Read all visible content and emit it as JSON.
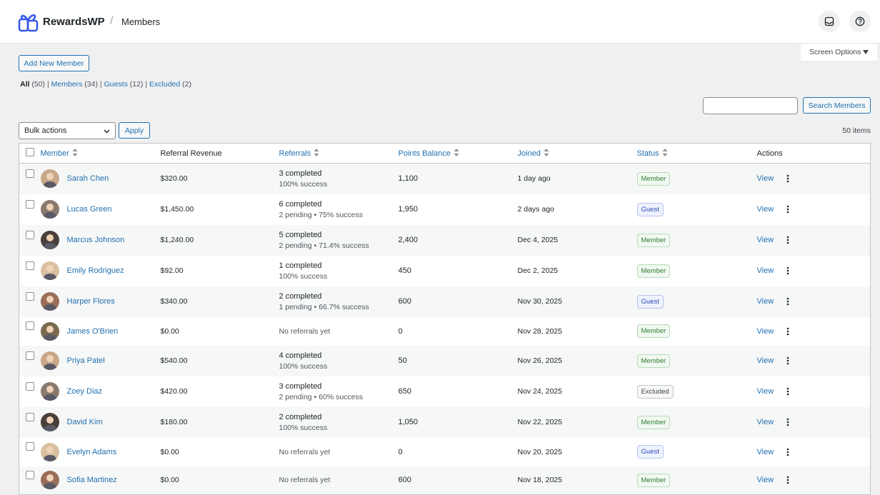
{
  "header": {
    "brand": "RewardsWP",
    "separator": "/",
    "page": "Members"
  },
  "screen_options": "Screen Options",
  "add_button": "Add New Member",
  "filters": [
    {
      "label": "All",
      "count": "(50)"
    },
    {
      "label": "Members",
      "count": "(34)"
    },
    {
      "label": "Guests",
      "count": "(12)"
    },
    {
      "label": "Excluded",
      "count": "(2)"
    }
  ],
  "filter_separator": "|",
  "search_button": "Search Members",
  "bulk_actions": "Bulk actions",
  "apply_button": "Apply",
  "items_count": "50 items",
  "table": {
    "columns": [
      "Member",
      "Referral Revenue",
      "Referrals",
      "Points Balance",
      "Joined",
      "Status",
      "Actions"
    ],
    "rows": [
      {
        "name": "Sarah Chen",
        "revenue": "$320.00",
        "referrals": "3 completed",
        "referrals_detail": "100% success",
        "points": "1,100",
        "joined": "1 day ago",
        "status": "Member",
        "action": "View"
      },
      {
        "name": "Lucas Green",
        "revenue": "$1,450.00",
        "referrals": "6 completed",
        "referrals_detail": "2 pending • 75% success",
        "points": "1,950",
        "joined": "2 days ago",
        "status": "Guest",
        "action": "View"
      },
      {
        "name": "Marcus Johnson",
        "revenue": "$1,240.00",
        "referrals": "5 completed",
        "referrals_detail": "2 pending • 71.4% success",
        "points": "2,400",
        "joined": "Dec 4, 2025",
        "status": "Member",
        "action": "View"
      },
      {
        "name": "Emily Rodriguez",
        "revenue": "$92.00",
        "referrals": "1 completed",
        "referrals_detail": "100% success",
        "points": "450",
        "joined": "Dec 2, 2025",
        "status": "Member",
        "action": "View"
      },
      {
        "name": "Harper Flores",
        "revenue": "$340.00",
        "referrals": "2 completed",
        "referrals_detail": "1 pending • 66.7% success",
        "points": "600",
        "joined": "Nov 30, 2025",
        "status": "Guest",
        "action": "View"
      },
      {
        "name": "James O'Brien",
        "revenue": "$0.00",
        "referrals": "No referrals yet",
        "points": "0",
        "joined": "Nov 28, 2025",
        "status": "Member",
        "action": "View"
      },
      {
        "name": "Priya Patel",
        "revenue": "$540.00",
        "referrals": "4 completed",
        "referrals_detail": "100% success",
        "points": "50",
        "joined": "Nov 26, 2025",
        "status": "Member",
        "action": "View"
      },
      {
        "name": "Zoey Diaz",
        "revenue": "$420.00",
        "referrals": "3 completed",
        "referrals_detail": "2 pending • 60% success",
        "points": "650",
        "joined": "Nov 24, 2025",
        "status": "Excluded",
        "action": "View"
      },
      {
        "name": "David Kim",
        "revenue": "$180.00",
        "referrals": "2 completed",
        "referrals_detail": "100% success",
        "points": "1,050",
        "joined": "Nov 22, 2025",
        "status": "Member",
        "action": "View"
      },
      {
        "name": "Evelyn Adams",
        "revenue": "$0.00",
        "referrals": "No referrals yet",
        "points": "0",
        "joined": "Nov 20, 2025",
        "status": "Guest",
        "action": "View"
      },
      {
        "name": "Sofia Martinez",
        "revenue": "$0.00",
        "referrals": "No referrals yet",
        "points": "600",
        "joined": "Nov 18, 2025",
        "status": "Member",
        "action": "View"
      }
    ]
  }
}
